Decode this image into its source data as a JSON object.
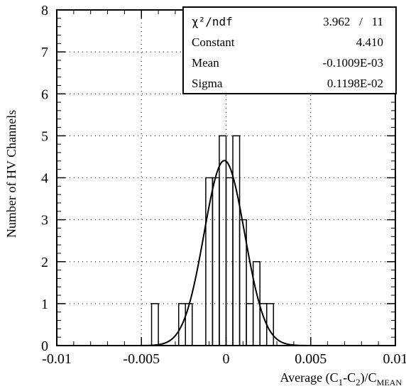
{
  "chart_data": {
    "type": "histogram",
    "xlabel": {
      "prefix": "Average (C",
      "sub1": "1",
      "mid": "-C",
      "sub2": "2",
      "tail": ")/C",
      "sub3": "MEAN"
    },
    "ylabel": "Number of HV Channels",
    "xlim": [
      -0.01,
      0.01
    ],
    "ylim": [
      0,
      8
    ],
    "x_ticks": [
      "-0.01",
      "-0.005",
      "0",
      "0.005",
      "0.01"
    ],
    "y_ticks": [
      "0",
      "1",
      "2",
      "3",
      "4",
      "5",
      "6",
      "7",
      "8"
    ],
    "grid": "dotted",
    "bin_width": 0.0004,
    "bins": [
      {
        "x": -0.0044,
        "count": 1
      },
      {
        "x": -0.0028,
        "count": 1
      },
      {
        "x": -0.0024,
        "count": 1
      },
      {
        "x": -0.0012,
        "count": 4
      },
      {
        "x": -0.0008,
        "count": 4
      },
      {
        "x": -0.0004,
        "count": 5
      },
      {
        "x": 0.0,
        "count": 4
      },
      {
        "x": 0.0004,
        "count": 5
      },
      {
        "x": 0.0008,
        "count": 3
      },
      {
        "x": 0.0012,
        "count": 1
      },
      {
        "x": 0.0016,
        "count": 2
      },
      {
        "x": 0.002,
        "count": 1
      },
      {
        "x": 0.0024,
        "count": 1
      }
    ],
    "fit": {
      "type": "gaussian",
      "constant": 4.41,
      "mean": -0.0001009,
      "sigma": 0.001198
    },
    "stats_box": {
      "position": "top-right",
      "rows": [
        {
          "label": "χ²/ndf",
          "value": "3.962   /   11"
        },
        {
          "label": "Constant",
          "value": "4.410"
        },
        {
          "label": "Mean",
          "value": "-0.1009E-03"
        },
        {
          "label": "Sigma",
          "value": "0.1198E-02"
        }
      ]
    }
  }
}
